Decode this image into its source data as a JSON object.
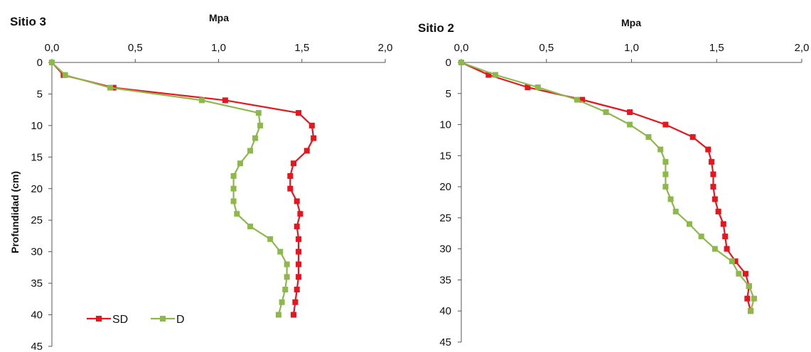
{
  "colors": {
    "SD": "#e8141e",
    "D": "#8db84a",
    "axis": "#555555"
  },
  "chart_data": [
    {
      "type": "line",
      "title": "Sitio 3",
      "xlabel": "Mpa",
      "ylabel": "Profundidad (cm)",
      "xlim": [
        0,
        2
      ],
      "ylim": [
        0,
        45
      ],
      "y_inverted": true,
      "x_ticks": [
        "0,0",
        "0,5",
        "1,0",
        "1,5",
        "2,0"
      ],
      "y_ticks": [
        "0",
        "5",
        "10",
        "15",
        "20",
        "25",
        "30",
        "35",
        "40",
        "45"
      ],
      "legend": {
        "placement": "bottom-left",
        "entries": [
          "SD",
          "D"
        ]
      },
      "series": [
        {
          "name": "SD",
          "color": "#e8141e",
          "points": [
            [
              0.0,
              0
            ],
            [
              0.07,
              2
            ],
            [
              0.37,
              4
            ],
            [
              1.04,
              6
            ],
            [
              1.48,
              8
            ],
            [
              1.56,
              10
            ],
            [
              1.57,
              12
            ],
            [
              1.53,
              14
            ],
            [
              1.45,
              16
            ],
            [
              1.43,
              18
            ],
            [
              1.43,
              20
            ],
            [
              1.47,
              22
            ],
            [
              1.49,
              24
            ],
            [
              1.47,
              26
            ],
            [
              1.48,
              28
            ],
            [
              1.48,
              30
            ],
            [
              1.48,
              32
            ],
            [
              1.48,
              34
            ],
            [
              1.47,
              36
            ],
            [
              1.46,
              38
            ],
            [
              1.45,
              40
            ]
          ]
        },
        {
          "name": "D",
          "color": "#8db84a",
          "points": [
            [
              0.0,
              0
            ],
            [
              0.08,
              2
            ],
            [
              0.35,
              4
            ],
            [
              0.9,
              6
            ],
            [
              1.24,
              8
            ],
            [
              1.25,
              10
            ],
            [
              1.22,
              12
            ],
            [
              1.19,
              14
            ],
            [
              1.13,
              16
            ],
            [
              1.09,
              18
            ],
            [
              1.09,
              20
            ],
            [
              1.09,
              22
            ],
            [
              1.11,
              24
            ],
            [
              1.19,
              26
            ],
            [
              1.31,
              28
            ],
            [
              1.37,
              30
            ],
            [
              1.41,
              32
            ],
            [
              1.41,
              34
            ],
            [
              1.4,
              36
            ],
            [
              1.38,
              38
            ],
            [
              1.36,
              40
            ]
          ]
        }
      ]
    },
    {
      "type": "line",
      "title": "Sitio 2",
      "xlabel": "Mpa",
      "ylabel": "",
      "xlim": [
        0,
        2
      ],
      "ylim": [
        0,
        45
      ],
      "y_inverted": true,
      "x_ticks": [
        "0,0",
        "0,5",
        "1,0",
        "1,5",
        "2,0"
      ],
      "y_ticks": [
        "0",
        "5",
        "10",
        "15",
        "20",
        "25",
        "30",
        "35",
        "40",
        "45"
      ],
      "series": [
        {
          "name": "SD",
          "color": "#e8141e",
          "points": [
            [
              0.0,
              0
            ],
            [
              0.16,
              2
            ],
            [
              0.39,
              4
            ],
            [
              0.71,
              6
            ],
            [
              0.99,
              8
            ],
            [
              1.2,
              10
            ],
            [
              1.36,
              12
            ],
            [
              1.45,
              14
            ],
            [
              1.47,
              16
            ],
            [
              1.48,
              18
            ],
            [
              1.48,
              20
            ],
            [
              1.49,
              22
            ],
            [
              1.51,
              24
            ],
            [
              1.54,
              26
            ],
            [
              1.55,
              28
            ],
            [
              1.56,
              30
            ],
            [
              1.61,
              32
            ],
            [
              1.67,
              34
            ],
            [
              1.69,
              36
            ],
            [
              1.68,
              38
            ],
            [
              1.7,
              40
            ]
          ]
        },
        {
          "name": "D",
          "color": "#8db84a",
          "points": [
            [
              0.0,
              0
            ],
            [
              0.2,
              2
            ],
            [
              0.45,
              4
            ],
            [
              0.68,
              6
            ],
            [
              0.85,
              8
            ],
            [
              0.99,
              10
            ],
            [
              1.1,
              12
            ],
            [
              1.17,
              14
            ],
            [
              1.2,
              16
            ],
            [
              1.2,
              18
            ],
            [
              1.2,
              20
            ],
            [
              1.23,
              22
            ],
            [
              1.26,
              24
            ],
            [
              1.34,
              26
            ],
            [
              1.41,
              28
            ],
            [
              1.49,
              30
            ],
            [
              1.59,
              32
            ],
            [
              1.63,
              34
            ],
            [
              1.69,
              36
            ],
            [
              1.72,
              38
            ],
            [
              1.7,
              40
            ]
          ]
        }
      ]
    }
  ]
}
